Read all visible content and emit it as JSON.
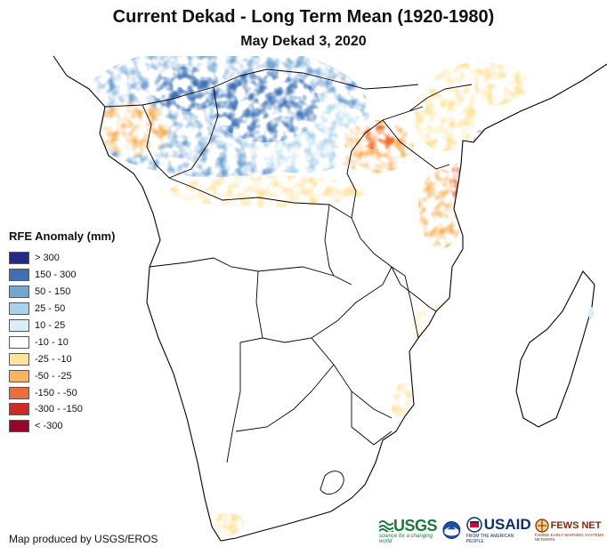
{
  "header": {
    "title": "Current Dekad - Long Term Mean (1920-1980)",
    "subtitle": "May Dekad 3, 2020"
  },
  "legend": {
    "title": "RFE Anomaly (mm)",
    "items": [
      {
        "label": "> 300",
        "color": "#232a8a"
      },
      {
        "label": "150 - 300",
        "color": "#3e6fb4"
      },
      {
        "label": "50 - 150",
        "color": "#74a6d4"
      },
      {
        "label": "25 - 50",
        "color": "#a9d3ea"
      },
      {
        "label": "10 - 25",
        "color": "#d9eef6"
      },
      {
        "label": "-10 - 10",
        "color": "#ffffff"
      },
      {
        "label": "-25 - -10",
        "color": "#fde39c"
      },
      {
        "label": "-50 - -25",
        "color": "#f8b45e"
      },
      {
        "label": "-150 - -50",
        "color": "#ee6d3c"
      },
      {
        "label": "-300 - -150",
        "color": "#cf2a26"
      },
      {
        "label": "< -300",
        "color": "#96082b"
      }
    ]
  },
  "footer": {
    "credit": "Map produced by USGS/EROS",
    "logos": {
      "usgs": "USGS",
      "usgs_tagline": "science for a changing world",
      "usaid": "USAID",
      "usaid_tagline": "FROM THE AMERICAN PEOPLE",
      "fews": "FEWS NET",
      "fews_tagline": "FAMINE EARLY WARNING SYSTEMS NETWORK"
    }
  }
}
